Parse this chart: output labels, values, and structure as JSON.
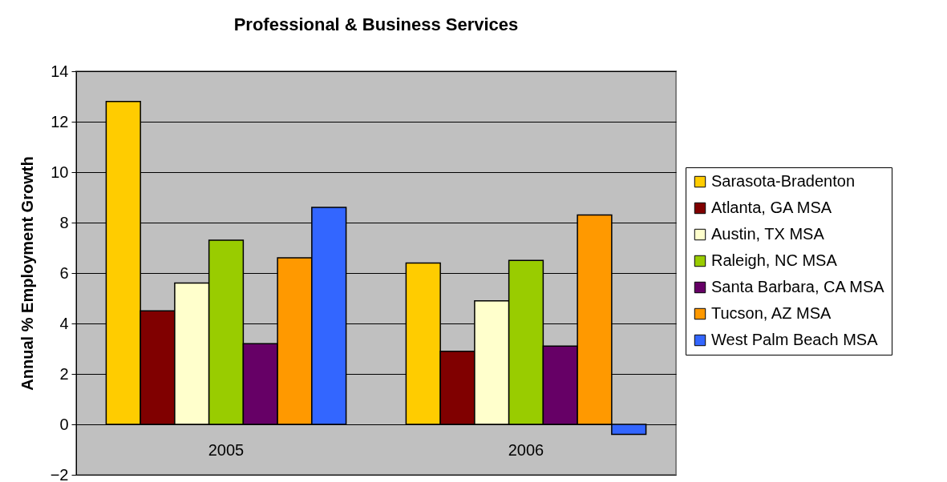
{
  "chart_data": {
    "type": "bar",
    "title": "Professional & Business Services",
    "ylabel": "Annual % Employment Growth",
    "categories": [
      "2005",
      "2006"
    ],
    "series": [
      {
        "name": "Sarasota-Bradenton",
        "color": "#ffcc00",
        "values": [
          12.8,
          6.4
        ]
      },
      {
        "name": "Atlanta, GA MSA",
        "color": "#800000",
        "values": [
          4.5,
          2.9
        ]
      },
      {
        "name": "Austin, TX MSA",
        "color": "#ffffcc",
        "values": [
          5.6,
          4.9
        ]
      },
      {
        "name": "Raleigh, NC MSA",
        "color": "#99cc00",
        "values": [
          7.3,
          6.5
        ]
      },
      {
        "name": "Santa Barbara, CA MSA",
        "color": "#660066",
        "values": [
          3.2,
          3.1
        ]
      },
      {
        "name": "Tucson, AZ MSA",
        "color": "#ff9900",
        "values": [
          6.6,
          8.3
        ]
      },
      {
        "name": "West Palm Beach MSA",
        "color": "#3366ff",
        "values": [
          8.6,
          -0.4
        ]
      }
    ],
    "ylim": [
      -2,
      14
    ],
    "yticks": [
      -2,
      0,
      2,
      4,
      6,
      8,
      10,
      12,
      14
    ],
    "grid": "y",
    "legend": "right"
  }
}
